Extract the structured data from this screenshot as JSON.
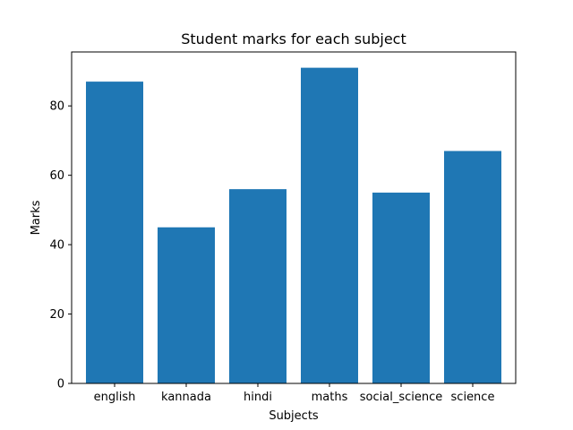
{
  "chart_data": {
    "type": "bar",
    "title": "Student marks for each subject",
    "xlabel": "Subjects",
    "ylabel": "Marks",
    "categories": [
      "english",
      "kannada",
      "hindi",
      "maths",
      "social_science",
      "science"
    ],
    "values": [
      87,
      45,
      56,
      91,
      55,
      67
    ],
    "ylim": [
      0,
      95.55
    ],
    "yticks": [
      0,
      20,
      40,
      60,
      80
    ],
    "grid": false,
    "bar_color": "#1f77b4"
  }
}
